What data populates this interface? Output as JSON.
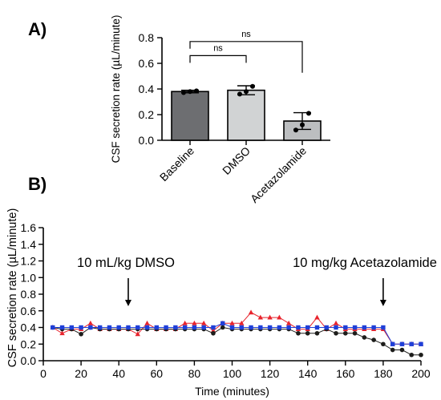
{
  "chart_data": [
    {
      "panel_label": "A)",
      "type": "bar",
      "ylabel": "CSF secretion rate (µL/minute)",
      "categories": [
        "Baseline",
        "DMSO",
        "Acetazolamide"
      ],
      "values": [
        0.38,
        0.39,
        0.15
      ],
      "error": [
        0.01,
        0.035,
        0.065
      ],
      "points": [
        [
          0.372,
          0.38,
          0.385
        ],
        [
          0.36,
          0.38,
          0.42
        ],
        [
          0.08,
          0.12,
          0.21
        ]
      ],
      "bar_colors": [
        "#6d6e71",
        "#d1d3d4",
        "#bcbec0"
      ],
      "ylim": [
        0,
        0.8
      ],
      "yticks": [
        "0.0",
        "0.2",
        "0.4",
        "0.6",
        "0.8"
      ],
      "ytick_values": [
        0,
        0.2,
        0.4,
        0.6,
        0.8
      ],
      "significance": [
        {
          "from": 0,
          "to": 1,
          "label": "ns"
        },
        {
          "from": 0,
          "to": 2,
          "label": "ns"
        }
      ]
    },
    {
      "panel_label": "B)",
      "type": "line",
      "xlabel": "Time (minutes)",
      "ylabel": "CSF secretion rate (µL/minute)",
      "xlim": [
        0,
        200
      ],
      "ylim": [
        0,
        1.6
      ],
      "xticks": [
        "0",
        "20",
        "40",
        "60",
        "80",
        "100",
        "120",
        "140",
        "160",
        "180",
        "200"
      ],
      "xtick_values": [
        0,
        20,
        40,
        60,
        80,
        100,
        120,
        140,
        160,
        180,
        200
      ],
      "yticks": [
        "0.0",
        "0.2",
        "0.4",
        "0.6",
        "0.8",
        "1.0",
        "1.2",
        "1.4",
        "1.6"
      ],
      "ytick_values": [
        0,
        0.2,
        0.4,
        0.6,
        0.8,
        1.0,
        1.2,
        1.4,
        1.6
      ],
      "annotations": [
        {
          "text": "10 mL/kg DMSO",
          "x": 45
        },
        {
          "text": "10 mg/kg Acetazolamide",
          "x": 180
        }
      ],
      "x": [
        5,
        10,
        15,
        20,
        25,
        30,
        35,
        40,
        45,
        50,
        55,
        60,
        65,
        70,
        75,
        80,
        85,
        90,
        95,
        100,
        105,
        110,
        115,
        120,
        125,
        130,
        135,
        140,
        145,
        150,
        155,
        160,
        165,
        170,
        175,
        180,
        185,
        190,
        195,
        200
      ],
      "series": [
        {
          "color": "#e8232c",
          "marker": "triangle",
          "values": [
            0.4,
            0.33,
            0.38,
            0.38,
            0.45,
            0.38,
            0.38,
            0.38,
            0.38,
            0.32,
            0.45,
            0.38,
            0.38,
            0.38,
            0.45,
            0.45,
            0.45,
            0.36,
            0.45,
            0.45,
            0.45,
            0.58,
            0.52,
            0.52,
            0.52,
            0.45,
            0.38,
            0.38,
            0.52,
            0.38,
            0.45,
            0.38,
            0.38,
            0.38,
            0.38,
            0.38,
            0.2,
            0.2,
            0.2,
            0.2
          ]
        },
        {
          "color": "#1d1d1b",
          "marker": "circle",
          "values": [
            0.4,
            0.38,
            0.38,
            0.32,
            0.4,
            0.38,
            0.38,
            0.38,
            0.38,
            0.38,
            0.38,
            0.38,
            0.38,
            0.38,
            0.38,
            0.38,
            0.38,
            0.33,
            0.4,
            0.38,
            0.38,
            0.38,
            0.38,
            0.38,
            0.38,
            0.38,
            0.33,
            0.33,
            0.33,
            0.38,
            0.33,
            0.33,
            0.33,
            0.28,
            0.25,
            0.2,
            0.13,
            0.13,
            0.07,
            0.07
          ]
        },
        {
          "color": "#1f3fd8",
          "marker": "square",
          "values": [
            0.4,
            0.4,
            0.4,
            0.4,
            0.4,
            0.4,
            0.4,
            0.4,
            0.4,
            0.4,
            0.4,
            0.4,
            0.4,
            0.4,
            0.4,
            0.4,
            0.4,
            0.4,
            0.45,
            0.4,
            0.4,
            0.4,
            0.4,
            0.4,
            0.4,
            0.4,
            0.4,
            0.4,
            0.4,
            0.4,
            0.4,
            0.4,
            0.4,
            0.4,
            0.4,
            0.4,
            0.2,
            0.2,
            0.2,
            0.2
          ]
        }
      ]
    }
  ]
}
